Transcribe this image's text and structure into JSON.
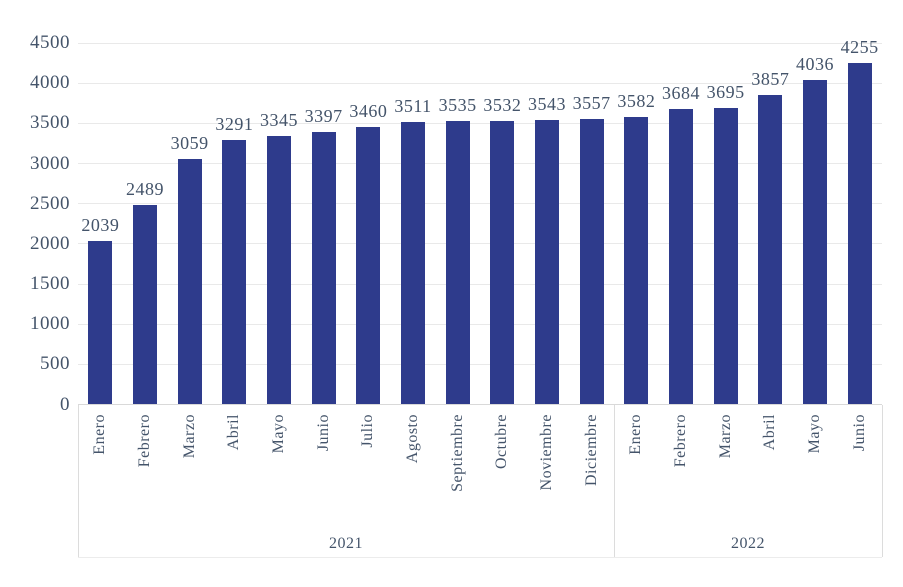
{
  "chart_data": {
    "type": "bar",
    "title": "",
    "xlabel": "",
    "ylabel": "",
    "categories": [
      "Enero",
      "Febrero",
      "Marzo",
      "Abril",
      "Mayo",
      "Junio",
      "Julio",
      "Agosto",
      "Septiembre",
      "Octubre",
      "Noviembre",
      "Diciembre",
      "Enero",
      "Febrero",
      "Marzo",
      "Abril",
      "Mayo",
      "Junio"
    ],
    "values": [
      2039,
      2489,
      3059,
      3291,
      3345,
      3397,
      3460,
      3511,
      3535,
      3532,
      3543,
      3557,
      3582,
      3684,
      3695,
      3857,
      4036,
      4255
    ],
    "groups": [
      {
        "label": "2021",
        "count": 12
      },
      {
        "label": "2022",
        "count": 6
      }
    ],
    "ylim": [
      0,
      4500
    ],
    "ytick_step": 500,
    "yticks": [
      0,
      500,
      1000,
      1500,
      2000,
      2500,
      3000,
      3500,
      4000,
      4500
    ],
    "grid": true,
    "legend": false,
    "data_labels": true,
    "colors": {
      "bar": "#2E3B8C",
      "text": "#44546A",
      "gridline": "#E9E9E9",
      "axis_line": "#D9D9D9",
      "separator": "#DCDCDC",
      "bottom_line": "#ECECEC"
    }
  }
}
